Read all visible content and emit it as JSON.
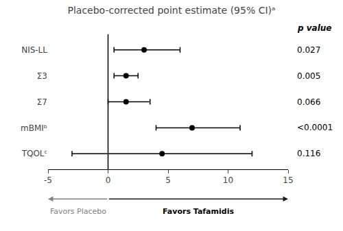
{
  "chart_data": {
    "type": "forest",
    "title": "Placebo-corrected point estimate (95% CI)ᵃ",
    "categories": [
      "NIS-LL",
      "Σ3",
      "Σ7",
      "mBMIᵇ",
      "TQOLᶜ"
    ],
    "values": [
      3.0,
      1.5,
      1.5,
      7.0,
      4.5
    ],
    "ci_lower": [
      0.5,
      0.5,
      0.0,
      4.0,
      -3.0
    ],
    "ci_upper": [
      6.0,
      2.5,
      3.5,
      11.0,
      12.0
    ],
    "p_value_label": "p value",
    "p_values": [
      "0.027",
      "0.005",
      "0.066",
      "<0.0001",
      "0.116"
    ],
    "xlim": [
      -5,
      15
    ],
    "xticks": [
      -5,
      0,
      5,
      10,
      15
    ],
    "reference_line": 0,
    "favors_left": "Favors Placebo",
    "favors_right": "Favors Tafamidis",
    "color": "#000000",
    "grid": false
  }
}
